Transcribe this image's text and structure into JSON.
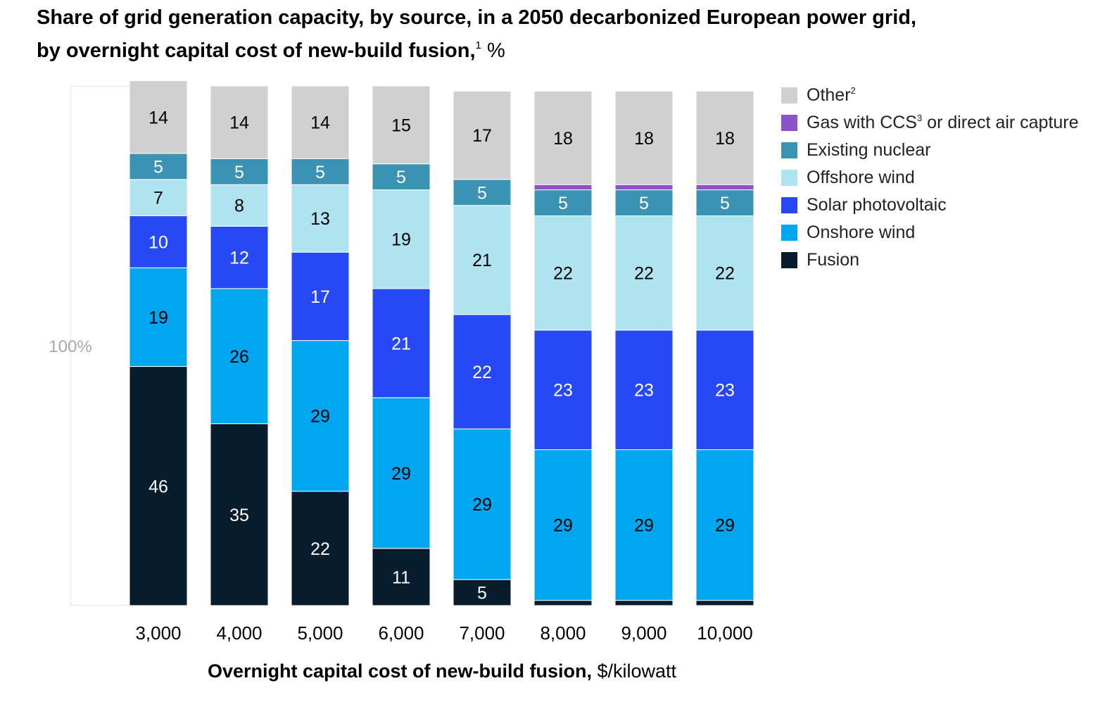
{
  "title": {
    "line1": "Share of grid generation capacity, by source, in a 2050 decarbonized European power grid,",
    "line2": "by overnight capital cost of new-build fusion,",
    "footnote": "1",
    "unit": "%"
  },
  "legend": [
    {
      "label": "Other",
      "sup": "2",
      "color": "#d0d0d0"
    },
    {
      "label": "Gas with CCS",
      "sup": "3",
      "suffix": " or direct air capture",
      "color": "#8c52cc"
    },
    {
      "label": "Existing nuclear",
      "color": "#3b93b3"
    },
    {
      "label": "Offshore wind",
      "color": "#aee3ef"
    },
    {
      "label": "Solar photovoltaic",
      "color": "#2748f5"
    },
    {
      "label": "Onshore wind",
      "color": "#00a6f0"
    },
    {
      "label": "Fusion",
      "color": "#071d2d"
    }
  ],
  "chart_data": {
    "type": "bar",
    "stacked": true,
    "categories": [
      "3,000",
      "4,000",
      "5,000",
      "6,000",
      "7,000",
      "8,000",
      "9,000",
      "10,000"
    ],
    "series": [
      {
        "name": "Fusion",
        "color": "#071d2d",
        "label_color": "#ffffff",
        "values": [
          46,
          35,
          22,
          11,
          5,
          1,
          1,
          1
        ]
      },
      {
        "name": "Onshore wind",
        "color": "#00a6f0",
        "label_color": "#000000",
        "values": [
          19,
          26,
          29,
          29,
          29,
          29,
          29,
          29
        ]
      },
      {
        "name": "Solar photovoltaic",
        "color": "#2748f5",
        "label_color": "#ffffff",
        "values": [
          10,
          12,
          17,
          21,
          22,
          23,
          23,
          23
        ]
      },
      {
        "name": "Offshore wind",
        "color": "#aee3ef",
        "label_color": "#000000",
        "values": [
          7,
          8,
          13,
          19,
          21,
          22,
          22,
          22
        ]
      },
      {
        "name": "Existing nuclear",
        "color": "#3b93b3",
        "label_color": "#ffffff",
        "values": [
          5,
          5,
          5,
          5,
          5,
          5,
          5,
          5
        ]
      },
      {
        "name": "Gas with CCS or direct air capture",
        "color": "#8c52cc",
        "label_color": "#000000",
        "values": [
          null,
          null,
          null,
          null,
          null,
          1,
          1,
          1
        ]
      },
      {
        "name": "Other",
        "color": "#d0d0d0",
        "label_color": "#000000",
        "values": [
          14,
          14,
          14,
          15,
          17,
          18,
          18,
          18
        ]
      }
    ],
    "reference_label": "100%",
    "xlabel_bold": "Overnight capital cost of new-build fusion,",
    "xlabel_unit": "$/kilowatt",
    "ylabel": "",
    "ylim": [
      0,
      100
    ],
    "grid": false,
    "legend_position": "right"
  }
}
